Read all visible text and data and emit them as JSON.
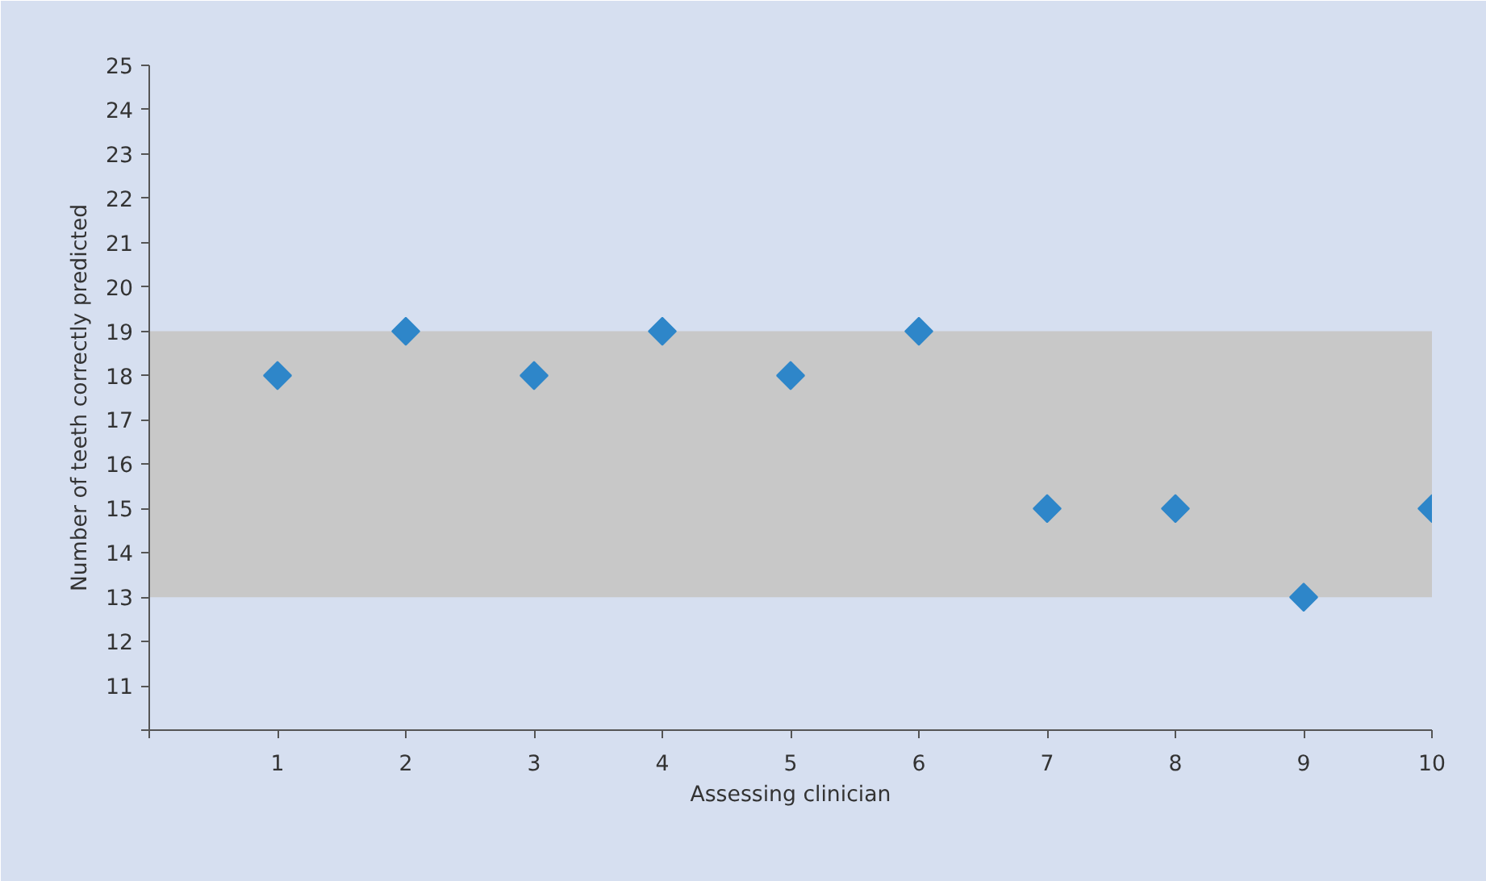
{
  "chart_data": {
    "type": "scatter",
    "xlabel": "Assessing clinician",
    "ylabel": "Number of teeth correctly predicted",
    "x": [
      1,
      2,
      3,
      4,
      5,
      6,
      7,
      8,
      9,
      10
    ],
    "series": [
      {
        "color": "#2e86c9",
        "values": [
          18,
          19,
          18,
          19,
          18,
          19,
          15,
          15,
          13,
          15
        ]
      }
    ],
    "xlim": [
      0,
      10
    ],
    "ylim": [
      10,
      25
    ],
    "xticks": [
      {
        "value": 0,
        "label": null
      },
      1,
      2,
      3,
      4,
      5,
      6,
      7,
      8,
      9,
      10
    ],
    "yticks": [
      {
        "value": 10,
        "label": null
      },
      11,
      12,
      13,
      14,
      15,
      16,
      17,
      18,
      19,
      20,
      21,
      22,
      23,
      24,
      25
    ],
    "bands": [
      {
        "axis": "y",
        "from": 13,
        "to": 19,
        "color": "#c8c8c8"
      }
    ],
    "marker": "diamond",
    "grid": false
  }
}
